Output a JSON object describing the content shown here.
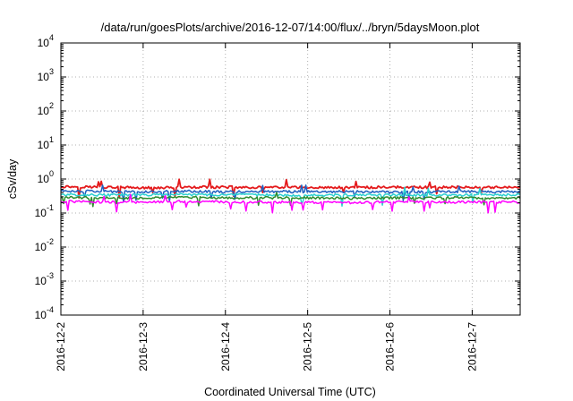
{
  "chart_data": {
    "type": "line",
    "title": "/data/run/goesPlots/archive/2016-12-07/14:00/flux/../bryn/5daysMoon.plot",
    "xlabel": "Coordinated Universal Time (UTC)",
    "ylabel": "cSv/day",
    "yscale": "log",
    "ylim": [
      0.0001,
      10000
    ],
    "xlim": [
      "2016-12-02T00:00",
      "2016-12-07T14:00"
    ],
    "x_ticks": [
      "2016-12-2",
      "2016-12-3",
      "2016-12-4",
      "2016-12-5",
      "2016-12-6",
      "2016-12-7"
    ],
    "y_ticks": [
      {
        "base": "10",
        "exp": "-4"
      },
      {
        "base": "10",
        "exp": "-3"
      },
      {
        "base": "10",
        "exp": "-2"
      },
      {
        "base": "10",
        "exp": "-1"
      },
      {
        "base": "10",
        "exp": "0"
      },
      {
        "base": "10",
        "exp": "1"
      },
      {
        "base": "10",
        "exp": "2"
      },
      {
        "base": "10",
        "exp": "3"
      },
      {
        "base": "10",
        "exp": "4"
      }
    ],
    "grid": true,
    "legend": "none",
    "x": [
      "2016-12-02T00:00",
      "2016-12-02T12:00",
      "2016-12-03T00:00",
      "2016-12-03T12:00",
      "2016-12-04T00:00",
      "2016-12-04T12:00",
      "2016-12-05T00:00",
      "2016-12-05T12:00",
      "2016-12-06T00:00",
      "2016-12-06T12:00",
      "2016-12-07T00:00",
      "2016-12-07T14:00"
    ],
    "series": [
      {
        "color": "#e41a1c",
        "values": [
          0.6,
          0.58,
          0.55,
          0.57,
          0.58,
          0.56,
          0.57,
          0.56,
          0.58,
          0.57,
          0.58,
          0.57
        ]
      },
      {
        "color": "#1f5fbf",
        "values": [
          0.45,
          0.43,
          0.42,
          0.44,
          0.42,
          0.43,
          0.42,
          0.43,
          0.41,
          0.42,
          0.43,
          0.42
        ]
      },
      {
        "color": "#2bd0d0",
        "values": [
          0.35,
          0.34,
          0.34,
          0.35,
          0.34,
          0.34,
          0.33,
          0.34,
          0.34,
          0.33,
          0.34,
          0.34
        ]
      },
      {
        "color": "#2e8b2e",
        "values": [
          0.29,
          0.28,
          0.28,
          0.29,
          0.28,
          0.28,
          0.28,
          0.27,
          0.28,
          0.28,
          0.28,
          0.28
        ]
      },
      {
        "color": "#ff00ff",
        "values": [
          0.22,
          0.21,
          0.21,
          0.22,
          0.21,
          0.21,
          0.21,
          0.2,
          0.21,
          0.21,
          0.21,
          0.21
        ]
      }
    ]
  }
}
